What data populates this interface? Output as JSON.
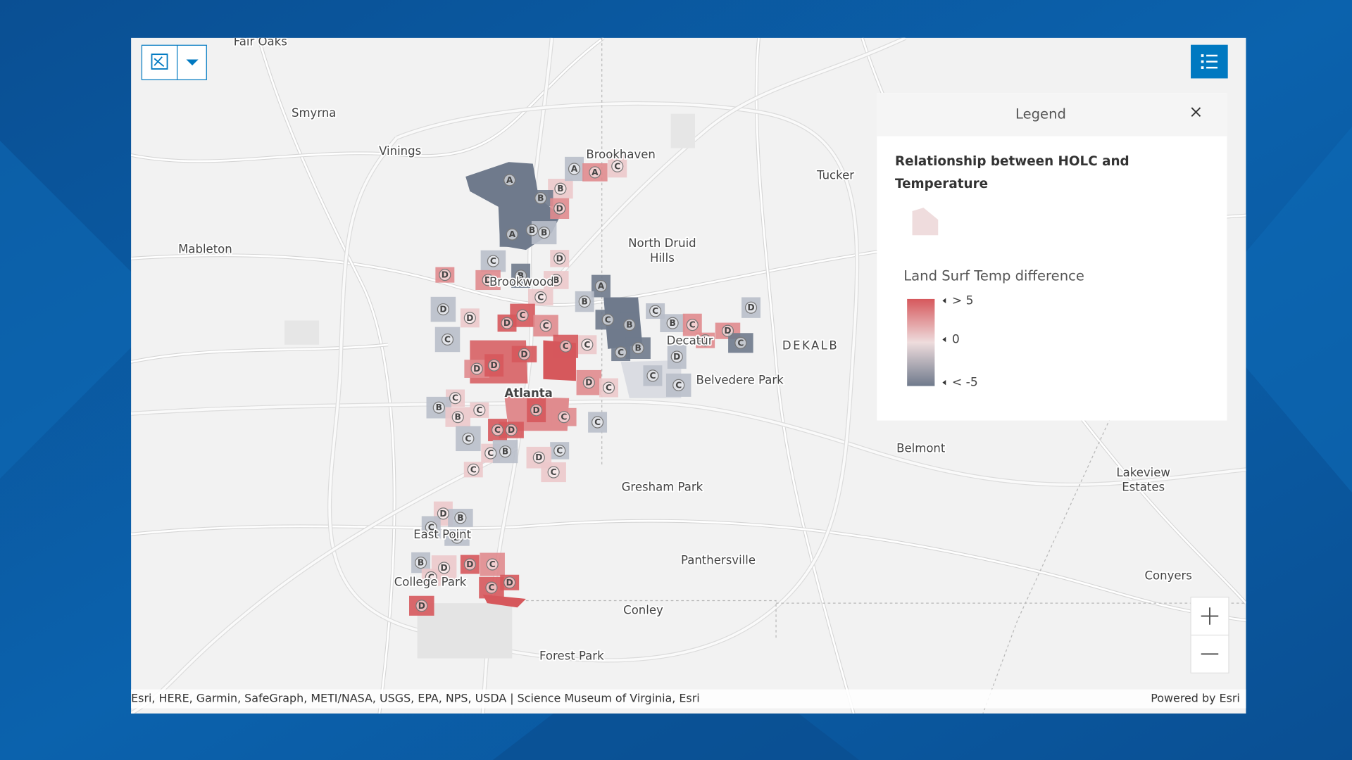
{
  "map": {
    "places": [
      [
        "Fair Oaks"
      ],
      [
        "Smyrna"
      ],
      [
        "Vinings"
      ],
      [
        "Brookhaven"
      ],
      [
        "Tucker"
      ],
      [
        "Mableton"
      ],
      [
        "North Druid",
        "Hills"
      ],
      [
        "Brookwood"
      ],
      [
        "DEKALB"
      ],
      [
        "Decatur"
      ],
      [
        "Belvedere Park"
      ],
      [
        "Atlanta"
      ],
      [
        "Belmont"
      ],
      [
        "Lakeview",
        "Estates"
      ],
      [
        "Gresham Park"
      ],
      [
        "East Point"
      ],
      [
        "Panthersville"
      ],
      [
        "Conyers"
      ],
      [
        "College Park"
      ],
      [
        "Conley"
      ],
      [
        "Forest Park"
      ]
    ],
    "grade_labels": [
      "A",
      "B",
      "A",
      "A",
      "C",
      "B",
      "D",
      "A",
      "B",
      "B",
      "D",
      "C",
      "D",
      "D",
      "B",
      "B",
      "A",
      "C",
      "B",
      "D",
      "D",
      "C",
      "D",
      "C",
      "C",
      "C",
      "B",
      "B",
      "C",
      "D",
      "D",
      "C",
      "C",
      "C",
      "C",
      "B",
      "D",
      "C",
      "D",
      "D",
      "D",
      "D",
      "C",
      "D",
      "C",
      "C",
      "C",
      "B",
      "C",
      "B",
      "D",
      "C",
      "C",
      "D",
      "C",
      "C",
      "C",
      "B",
      "C",
      "D",
      "C",
      "C",
      "D",
      "B",
      "C",
      "D",
      "B",
      "D",
      "D",
      "C",
      "C",
      "C",
      "D",
      "D"
    ],
    "attribution": "Esri, HERE, Garmin, SafeGraph, METI/NASA, USGS, EPA, NPS, USDA | Science Museum of Virginia, Esri",
    "powered_by": "Powered by Esri"
  },
  "legend": {
    "header": "Legend",
    "layer_title_lines": [
      "Relationship between HOLC and",
      "Temperature"
    ],
    "field_title": "Land Surf Temp difference",
    "stops": [
      "> 5",
      "0",
      "< -5"
    ]
  }
}
